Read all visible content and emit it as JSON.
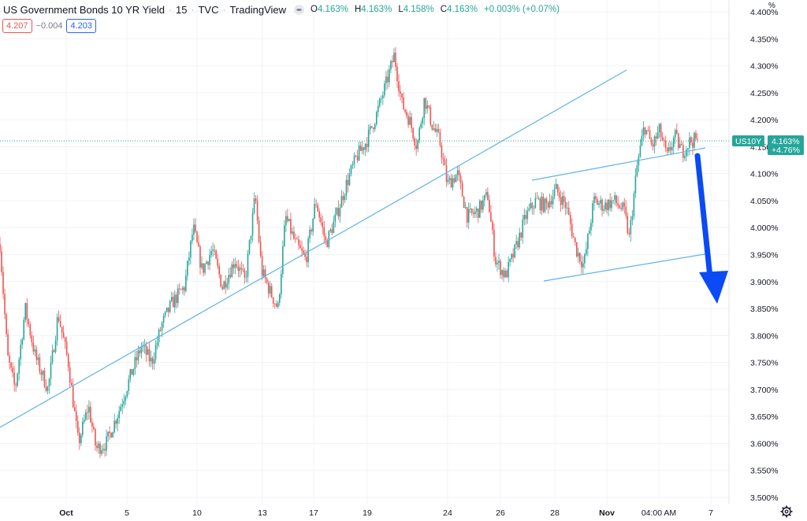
{
  "header": {
    "title": "US Government Bonds 10 YR Yield",
    "interval": "15",
    "exchange": "TVC",
    "source": "TradingView",
    "ohlc": [
      {
        "key": "O",
        "value": "4.163%"
      },
      {
        "key": "H",
        "value": "4.163%"
      },
      {
        "key": "L",
        "value": "4.158%"
      },
      {
        "key": "C",
        "value": "4.163%"
      },
      {
        "key": "",
        "value": "+0.003% (+0.07%)"
      }
    ],
    "bid": "4.207",
    "spread": "−0.004",
    "ask": "4.203"
  },
  "price_tag": {
    "symbol": "US10Y",
    "value": "4.163%",
    "change": "+4.76%",
    "color": "#26a69a"
  },
  "colors": {
    "up": "#26a69a",
    "down": "#ef5350",
    "trendline": "#5fb3e8",
    "arrow": "#0b4bf5",
    "grid": "#f0f3fa"
  },
  "chart_data": {
    "type": "candlestick",
    "y_unit": "%",
    "ylim": [
      3.49,
      4.4
    ],
    "y_ticks": [
      "4.400%",
      "4.350%",
      "4.300%",
      "4.250%",
      "4.200%",
      "4.150%",
      "4.100%",
      "4.050%",
      "4.000%",
      "3.950%",
      "3.900%",
      "3.850%",
      "3.800%",
      "3.750%",
      "3.700%",
      "3.650%",
      "3.600%",
      "3.550%",
      "3.500%"
    ],
    "x_ticks": [
      "Oct",
      "5",
      "10",
      "13",
      "17",
      "19",
      "24",
      "26",
      "28",
      "Nov",
      "04:00 AM",
      "7"
    ],
    "last_value": 4.163,
    "close_path": [
      {
        "t": 0,
        "y": 3.97
      },
      {
        "t": 0.6,
        "y": 3.76
      },
      {
        "t": 1.2,
        "y": 3.7
      },
      {
        "t": 2.0,
        "y": 3.85
      },
      {
        "t": 2.8,
        "y": 3.76
      },
      {
        "t": 3.8,
        "y": 3.7
      },
      {
        "t": 4.6,
        "y": 3.84
      },
      {
        "t": 5.4,
        "y": 3.75
      },
      {
        "t": 6.2,
        "y": 3.6
      },
      {
        "t": 7.0,
        "y": 3.67
      },
      {
        "t": 7.6,
        "y": 3.59
      },
      {
        "t": 8.4,
        "y": 3.6
      },
      {
        "t": 9.4,
        "y": 3.66
      },
      {
        "t": 10.4,
        "y": 3.73
      },
      {
        "t": 11.2,
        "y": 3.78
      },
      {
        "t": 12.0,
        "y": 3.75
      },
      {
        "t": 12.8,
        "y": 3.82
      },
      {
        "t": 13.6,
        "y": 3.86
      },
      {
        "t": 14.6,
        "y": 3.89
      },
      {
        "t": 15.3,
        "y": 4.0
      },
      {
        "t": 16.0,
        "y": 3.92
      },
      {
        "t": 16.8,
        "y": 3.96
      },
      {
        "t": 17.6,
        "y": 3.89
      },
      {
        "t": 18.6,
        "y": 3.94
      },
      {
        "t": 19.4,
        "y": 3.9
      },
      {
        "t": 20.2,
        "y": 4.06
      },
      {
        "t": 20.7,
        "y": 3.92
      },
      {
        "t": 21.4,
        "y": 3.88
      },
      {
        "t": 22.0,
        "y": 3.85
      },
      {
        "t": 22.6,
        "y": 4.02
      },
      {
        "t": 23.4,
        "y": 3.97
      },
      {
        "t": 24.2,
        "y": 3.94
      },
      {
        "t": 25.0,
        "y": 4.05
      },
      {
        "t": 25.8,
        "y": 3.97
      },
      {
        "t": 26.6,
        "y": 4.02
      },
      {
        "t": 27.4,
        "y": 4.08
      },
      {
        "t": 28.2,
        "y": 4.13
      },
      {
        "t": 29.0,
        "y": 4.16
      },
      {
        "t": 29.8,
        "y": 4.21
      },
      {
        "t": 30.6,
        "y": 4.27
      },
      {
        "t": 31.2,
        "y": 4.32
      },
      {
        "t": 31.8,
        "y": 4.23
      },
      {
        "t": 32.4,
        "y": 4.2
      },
      {
        "t": 33.0,
        "y": 4.15
      },
      {
        "t": 33.6,
        "y": 4.24
      },
      {
        "t": 34.2,
        "y": 4.19
      },
      {
        "t": 34.8,
        "y": 4.16
      },
      {
        "t": 35.4,
        "y": 4.08
      },
      {
        "t": 36.2,
        "y": 4.1
      },
      {
        "t": 37.0,
        "y": 4.02
      },
      {
        "t": 37.8,
        "y": 4.03
      },
      {
        "t": 38.6,
        "y": 4.06
      },
      {
        "t": 39.2,
        "y": 3.94
      },
      {
        "t": 40.0,
        "y": 3.91
      },
      {
        "t": 40.8,
        "y": 3.96
      },
      {
        "t": 41.6,
        "y": 4.02
      },
      {
        "t": 42.4,
        "y": 4.05
      },
      {
        "t": 43.2,
        "y": 4.04
      },
      {
        "t": 44.0,
        "y": 4.07
      },
      {
        "t": 44.8,
        "y": 4.04
      },
      {
        "t": 45.6,
        "y": 3.96
      },
      {
        "t": 46.2,
        "y": 3.93
      },
      {
        "t": 47.0,
        "y": 4.05
      },
      {
        "t": 47.8,
        "y": 4.04
      },
      {
        "t": 48.6,
        "y": 4.05
      },
      {
        "t": 49.4,
        "y": 4.03
      },
      {
        "t": 49.8,
        "y": 3.98
      },
      {
        "t": 50.4,
        "y": 4.11
      },
      {
        "t": 51.0,
        "y": 4.19
      },
      {
        "t": 51.6,
        "y": 4.15
      },
      {
        "t": 52.2,
        "y": 4.18
      },
      {
        "t": 52.8,
        "y": 4.13
      },
      {
        "t": 53.4,
        "y": 4.17
      },
      {
        "t": 54.0,
        "y": 4.14
      },
      {
        "t": 54.6,
        "y": 4.16
      },
      {
        "t": 55.2,
        "y": 4.163
      }
    ]
  }
}
